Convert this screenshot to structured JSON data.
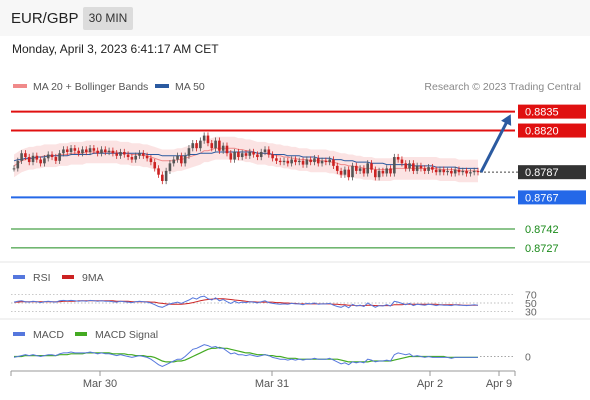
{
  "header": {
    "symbol": "EUR/GBP",
    "timeframe": "30 MIN"
  },
  "timestamp": "Monday, April 3, 2023 6:41:17 AM CET",
  "credit": "Research © 2023 Trading Central",
  "colors": {
    "resistance": "#e01010",
    "support": "#2468e8",
    "target": "#1a8a1a",
    "price_box": "#333333",
    "ma20": "#f08a8a",
    "ma50": "#2b5aa0",
    "bands": "#fbe0e0",
    "candle_up": "#555555",
    "candle_down": "#cc2222",
    "arrow": "#2b5aa0",
    "rsi": "#5577dd",
    "rsi_ma": "#cc2222",
    "macd": "#5577dd",
    "macd_signal": "#44aa22"
  },
  "chart_data": [
    {
      "type": "candlestick",
      "legend": [
        "MA 20 + Bollinger Bands",
        "MA 50"
      ],
      "legend_position": "top-left",
      "x_ticks": [
        "Mar 30",
        "Mar 31",
        "Apr 2",
        "Apr 9"
      ],
      "ylim": [
        0.8715,
        0.8845
      ],
      "current_price": 0.8787,
      "levels": [
        {
          "value": 0.8835,
          "label": "0.8835",
          "kind": "resistance"
        },
        {
          "value": 0.882,
          "label": "0.8820",
          "kind": "resistance"
        },
        {
          "value": 0.8787,
          "label": "0.8787",
          "kind": "current"
        },
        {
          "value": 0.8767,
          "label": "0.8767",
          "kind": "support"
        },
        {
          "value": 0.8742,
          "label": "0.8742",
          "kind": "target"
        },
        {
          "value": 0.8727,
          "label": "0.8727",
          "kind": "target"
        }
      ],
      "close": [
        0.879,
        0.8796,
        0.8802,
        0.8799,
        0.8795,
        0.88,
        0.8797,
        0.8794,
        0.8798,
        0.8801,
        0.8799,
        0.8796,
        0.8802,
        0.8805,
        0.8803,
        0.8806,
        0.8804,
        0.8802,
        0.8805,
        0.8803,
        0.8806,
        0.8804,
        0.8802,
        0.8805,
        0.8803,
        0.8804,
        0.8802,
        0.88,
        0.8803,
        0.8801,
        0.8799,
        0.8797,
        0.88,
        0.8802,
        0.88,
        0.8798,
        0.8795,
        0.879,
        0.8785,
        0.878,
        0.8788,
        0.8794,
        0.8797,
        0.88,
        0.8794,
        0.88,
        0.8806,
        0.881,
        0.8806,
        0.8812,
        0.8816,
        0.881,
        0.8806,
        0.8812,
        0.8804,
        0.8808,
        0.8802,
        0.8797,
        0.8803,
        0.8799,
        0.8802,
        0.88,
        0.8803,
        0.8801,
        0.8799,
        0.8803,
        0.8805,
        0.8801,
        0.8798,
        0.8796,
        0.8795,
        0.8796,
        0.8794,
        0.8797,
        0.8795,
        0.8796,
        0.8793,
        0.8797,
        0.8795,
        0.8798,
        0.8794,
        0.8796,
        0.8795,
        0.8797,
        0.8792,
        0.8788,
        0.8785,
        0.8789,
        0.8783,
        0.8792,
        0.8788,
        0.879,
        0.8786,
        0.8794,
        0.8789,
        0.8783,
        0.8788,
        0.8786,
        0.879,
        0.8786,
        0.8799,
        0.8797,
        0.8794,
        0.879,
        0.8794,
        0.8788,
        0.8792,
        0.879,
        0.8788,
        0.8791,
        0.8789,
        0.8787,
        0.8789,
        0.8787,
        0.8788,
        0.8786,
        0.8789,
        0.8787,
        0.8788,
        0.8786,
        0.8787,
        0.8788,
        0.8787
      ],
      "ma20": [
        0.8792,
        0.8794,
        0.8796,
        0.8797,
        0.8798,
        0.8798,
        0.8799,
        0.8799,
        0.88,
        0.88,
        0.88,
        0.88,
        0.8801,
        0.8801,
        0.8801,
        0.8802,
        0.8802,
        0.8802,
        0.8802,
        0.8803,
        0.8803,
        0.8803,
        0.8803,
        0.8803,
        0.8803,
        0.8803,
        0.8803,
        0.8803,
        0.8802,
        0.8802,
        0.8802,
        0.8801,
        0.8801,
        0.8801,
        0.88,
        0.88,
        0.8799,
        0.8798,
        0.8797,
        0.8796,
        0.8796,
        0.8796,
        0.8796,
        0.8797,
        0.8797,
        0.8798,
        0.8799,
        0.88,
        0.8801,
        0.8802,
        0.8804,
        0.8804,
        0.8805,
        0.8806,
        0.8806,
        0.8806,
        0.8806,
        0.8806,
        0.8806,
        0.8805,
        0.8805,
        0.8804,
        0.8804,
        0.8803,
        0.8802,
        0.8802,
        0.8802,
        0.8801,
        0.8801,
        0.88,
        0.88,
        0.8799,
        0.8799,
        0.8798,
        0.8798,
        0.8797,
        0.8797,
        0.8797,
        0.8796,
        0.8796,
        0.8796,
        0.8796,
        0.8796,
        0.8795,
        0.8795,
        0.8794,
        0.8793,
        0.8793,
        0.8792,
        0.8792,
        0.8791,
        0.8791,
        0.879,
        0.879,
        0.879,
        0.8789,
        0.8789,
        0.8789,
        0.8789,
        0.8789,
        0.879,
        0.879,
        0.879,
        0.879,
        0.879,
        0.879,
        0.879,
        0.879,
        0.879,
        0.879,
        0.879,
        0.879,
        0.8789,
        0.8789,
        0.8789,
        0.8789,
        0.8789,
        0.8788,
        0.8788,
        0.8788,
        0.8788,
        0.8788,
        0.8788
      ],
      "ma50": [
        0.8796,
        0.8797,
        0.8797,
        0.8798,
        0.8798,
        0.8798,
        0.8799,
        0.8799,
        0.8799,
        0.88,
        0.88,
        0.88,
        0.88,
        0.88,
        0.88,
        0.8801,
        0.8801,
        0.8801,
        0.8801,
        0.8801,
        0.8801,
        0.8802,
        0.8802,
        0.8802,
        0.8802,
        0.8802,
        0.8802,
        0.8802,
        0.8802,
        0.8802,
        0.8802,
        0.8802,
        0.8802,
        0.8802,
        0.8802,
        0.8801,
        0.8801,
        0.8801,
        0.8801,
        0.88,
        0.88,
        0.88,
        0.88,
        0.88,
        0.88,
        0.88,
        0.8801,
        0.8801,
        0.8801,
        0.8802,
        0.8802,
        0.8802,
        0.8802,
        0.8803,
        0.8803,
        0.8803,
        0.8803,
        0.8803,
        0.8803,
        0.8803,
        0.8803,
        0.8803,
        0.8803,
        0.8803,
        0.8802,
        0.8802,
        0.8802,
        0.8802,
        0.8801,
        0.8801,
        0.8801,
        0.8801,
        0.88,
        0.88,
        0.88,
        0.88,
        0.8799,
        0.8799,
        0.8799,
        0.8799,
        0.8798,
        0.8798,
        0.8798,
        0.8798,
        0.8797,
        0.8797,
        0.8797,
        0.8796,
        0.8796,
        0.8796,
        0.8795,
        0.8795,
        0.8795,
        0.8795,
        0.8794,
        0.8794,
        0.8794,
        0.8794,
        0.8793,
        0.8793,
        0.8793,
        0.8793,
        0.8793,
        0.8793,
        0.8793,
        0.8792,
        0.8792,
        0.8792,
        0.8792,
        0.8792,
        0.8792,
        0.8791,
        0.8791,
        0.8791,
        0.8791,
        0.8791,
        0.8791,
        0.879,
        0.879,
        0.879,
        0.879,
        0.879,
        0.879
      ],
      "bb_width": 0.0009
    },
    {
      "type": "line",
      "legend": [
        "RSI",
        "9MA"
      ],
      "levels": [
        {
          "value": 70,
          "label": "70"
        },
        {
          "value": 50,
          "label": "50"
        },
        {
          "value": 30,
          "label": "30"
        }
      ],
      "ylim": [
        20,
        80
      ],
      "rsi": [
        52,
        54,
        55,
        53,
        52,
        54,
        53,
        51,
        53,
        54,
        53,
        52,
        55,
        56,
        55,
        56,
        55,
        54,
        55,
        54,
        56,
        55,
        54,
        55,
        54,
        54,
        53,
        52,
        54,
        53,
        52,
        51,
        53,
        54,
        53,
        52,
        50,
        46,
        42,
        40,
        44,
        48,
        50,
        52,
        49,
        53,
        57,
        62,
        59,
        64,
        66,
        60,
        57,
        62,
        55,
        58,
        53,
        49,
        54,
        50,
        52,
        51,
        53,
        52,
        50,
        53,
        55,
        51,
        49,
        48,
        47,
        48,
        47,
        49,
        48,
        48,
        46,
        49,
        48,
        50,
        47,
        48,
        48,
        49,
        45,
        42,
        40,
        44,
        39,
        47,
        43,
        45,
        42,
        50,
        45,
        40,
        44,
        43,
        46,
        43,
        54,
        52,
        49,
        46,
        49,
        44,
        47,
        46,
        45,
        47,
        46,
        44,
        46,
        45,
        45,
        44,
        46,
        45,
        45,
        44,
        45,
        46,
        45
      ],
      "rsi_ma": [
        52,
        52,
        53,
        53,
        53,
        53,
        53,
        53,
        53,
        53,
        53,
        53,
        53,
        54,
        54,
        54,
        54,
        55,
        55,
        55,
        55,
        55,
        55,
        55,
        55,
        55,
        55,
        54,
        54,
        54,
        54,
        53,
        53,
        53,
        53,
        53,
        52,
        52,
        50,
        49,
        48,
        47,
        47,
        47,
        47,
        48,
        49,
        51,
        53,
        55,
        57,
        58,
        59,
        60,
        60,
        60,
        59,
        58,
        57,
        56,
        55,
        54,
        53,
        53,
        52,
        52,
        52,
        52,
        52,
        51,
        51,
        50,
        50,
        49,
        49,
        48,
        48,
        48,
        48,
        48,
        48,
        48,
        48,
        48,
        47,
        47,
        46,
        46,
        45,
        45,
        44,
        44,
        44,
        45,
        45,
        44,
        44,
        44,
        44,
        44,
        46,
        46,
        46,
        47,
        47,
        47,
        47,
        47,
        47,
        47,
        47,
        47,
        46,
        46,
        46,
        46,
        46,
        46,
        45,
        45,
        45,
        45,
        45
      ]
    },
    {
      "type": "line",
      "legend": [
        "MACD",
        "MACD Signal"
      ],
      "levels": [
        {
          "value": 0,
          "label": "0"
        }
      ],
      "ylim": [
        -1.6,
        1.6
      ],
      "macd": [
        -0.1,
        0.0,
        0.1,
        0.2,
        0.1,
        0.2,
        0.1,
        0.0,
        0.1,
        0.2,
        0.2,
        0.1,
        0.3,
        0.4,
        0.4,
        0.5,
        0.4,
        0.4,
        0.4,
        0.4,
        0.5,
        0.4,
        0.3,
        0.4,
        0.3,
        0.3,
        0.2,
        0.1,
        0.2,
        0.1,
        0.0,
        -0.1,
        0.0,
        0.1,
        0.0,
        -0.1,
        -0.3,
        -0.6,
        -0.9,
        -1.1,
        -0.9,
        -0.7,
        -0.5,
        -0.3,
        -0.3,
        0.0,
        0.4,
        0.8,
        0.9,
        1.1,
        1.3,
        1.2,
        1.0,
        1.1,
        0.9,
        0.9,
        0.6,
        0.3,
        0.4,
        0.2,
        0.2,
        0.1,
        0.2,
        0.1,
        0.0,
        0.1,
        0.2,
        0.1,
        -0.1,
        -0.2,
        -0.3,
        -0.3,
        -0.4,
        -0.3,
        -0.4,
        -0.3,
        -0.4,
        -0.3,
        -0.3,
        -0.2,
        -0.3,
        -0.3,
        -0.3,
        -0.2,
        -0.4,
        -0.6,
        -0.8,
        -0.7,
        -0.9,
        -0.6,
        -0.7,
        -0.6,
        -0.7,
        -0.3,
        -0.4,
        -0.6,
        -0.5,
        -0.5,
        -0.4,
        -0.5,
        0.2,
        0.4,
        0.3,
        0.2,
        0.3,
        0.0,
        0.1,
        0.0,
        -0.1,
        0.0,
        -0.1,
        -0.1,
        -0.1,
        -0.1,
        -0.1,
        -0.2,
        -0.1,
        -0.1,
        -0.1,
        -0.1,
        -0.1,
        -0.1,
        -0.1
      ],
      "signal": [
        0.0,
        0.0,
        0.0,
        0.1,
        0.1,
        0.1,
        0.1,
        0.1,
        0.1,
        0.1,
        0.1,
        0.1,
        0.2,
        0.2,
        0.2,
        0.3,
        0.3,
        0.3,
        0.3,
        0.4,
        0.4,
        0.4,
        0.4,
        0.4,
        0.4,
        0.4,
        0.3,
        0.3,
        0.3,
        0.3,
        0.2,
        0.2,
        0.1,
        0.1,
        0.1,
        0.0,
        0.0,
        -0.1,
        -0.3,
        -0.5,
        -0.6,
        -0.6,
        -0.6,
        -0.5,
        -0.5,
        -0.4,
        -0.2,
        0.0,
        0.2,
        0.4,
        0.6,
        0.8,
        0.9,
        0.9,
        1.0,
        0.9,
        0.9,
        0.8,
        0.7,
        0.6,
        0.5,
        0.4,
        0.4,
        0.3,
        0.2,
        0.2,
        0.2,
        0.1,
        0.1,
        0.0,
        0.0,
        -0.1,
        -0.2,
        -0.2,
        -0.2,
        -0.3,
        -0.3,
        -0.3,
        -0.3,
        -0.3,
        -0.3,
        -0.3,
        -0.3,
        -0.3,
        -0.3,
        -0.3,
        -0.4,
        -0.5,
        -0.6,
        -0.6,
        -0.6,
        -0.6,
        -0.6,
        -0.6,
        -0.5,
        -0.5,
        -0.5,
        -0.5,
        -0.5,
        -0.5,
        -0.4,
        -0.3,
        -0.2,
        -0.1,
        0.0,
        0.0,
        0.0,
        0.0,
        0.0,
        0.0,
        0.0,
        0.0,
        0.0,
        0.0,
        -0.1,
        -0.1,
        -0.1,
        -0.1,
        -0.1,
        -0.1,
        -0.1,
        -0.1,
        -0.1
      ]
    }
  ]
}
